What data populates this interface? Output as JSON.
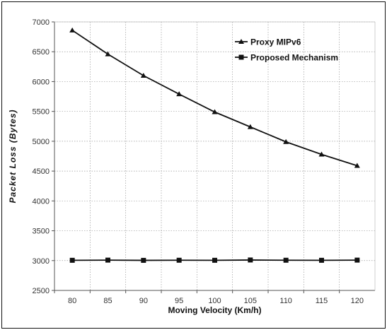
{
  "chart_data": {
    "type": "line",
    "title": "",
    "xlabel": "Moving Velocity (Km/h)",
    "ylabel": "Packet Loss (Bytes)",
    "x": [
      80,
      85,
      90,
      95,
      100,
      105,
      110,
      115,
      120
    ],
    "x_tick_labels": [
      "80",
      "85",
      "90",
      "95",
      "100",
      "105",
      "110",
      "115",
      "120"
    ],
    "y_tick_labels": [
      "2500",
      "3000",
      "3500",
      "4000",
      "4500",
      "5000",
      "5500",
      "6000",
      "6500",
      "7000"
    ],
    "ylim": [
      2500,
      7000
    ],
    "grid": true,
    "legend_position": "top-right",
    "series": [
      {
        "name": "Proxy MIPv6",
        "marker": "triangle",
        "color": "#111111",
        "values": [
          6860,
          6460,
          6100,
          5790,
          5490,
          5240,
          4990,
          4780,
          4590
        ]
      },
      {
        "name": "Proposed Mechanism",
        "marker": "square",
        "color": "#111111",
        "values": [
          3005,
          3008,
          3004,
          3006,
          3005,
          3010,
          3006,
          3005,
          3008
        ]
      }
    ]
  }
}
